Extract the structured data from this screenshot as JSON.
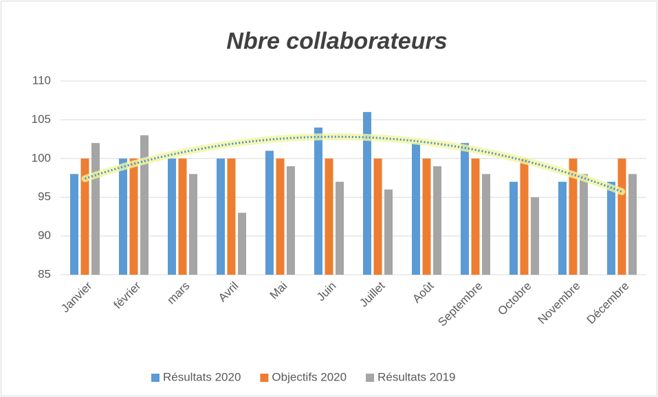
{
  "chart_data": {
    "type": "bar",
    "title": "Nbre collaborateurs",
    "categories": [
      "Janvier",
      "février",
      "mars",
      "Avril",
      "Mai",
      "Juin",
      "Juillet",
      "Août",
      "Septembre",
      "Octobre",
      "Novembre",
      "Décembre"
    ],
    "series": [
      {
        "name": "Résultats 2020",
        "color": "#5b9bd5",
        "values": [
          98,
          100,
          100,
          100,
          101,
          104,
          106,
          102,
          102,
          97,
          97,
          97
        ]
      },
      {
        "name": "Objectifs 2020",
        "color": "#ed7d31",
        "values": [
          100,
          100,
          100,
          100,
          100,
          100,
          100,
          100,
          100,
          100,
          100,
          100
        ]
      },
      {
        "name": "Résultats 2019",
        "color": "#a5a5a5",
        "values": [
          102,
          103,
          98,
          93,
          99,
          97,
          96,
          99,
          98,
          95,
          98,
          98
        ]
      }
    ],
    "ylim": [
      85,
      110
    ],
    "yticks": [
      85,
      90,
      95,
      100,
      105,
      110
    ],
    "grid": true,
    "legend": "bottom",
    "trendline": {
      "series": 0,
      "order": 2,
      "color": "#4a8fd0",
      "glow": "#f3f5a0"
    }
  }
}
